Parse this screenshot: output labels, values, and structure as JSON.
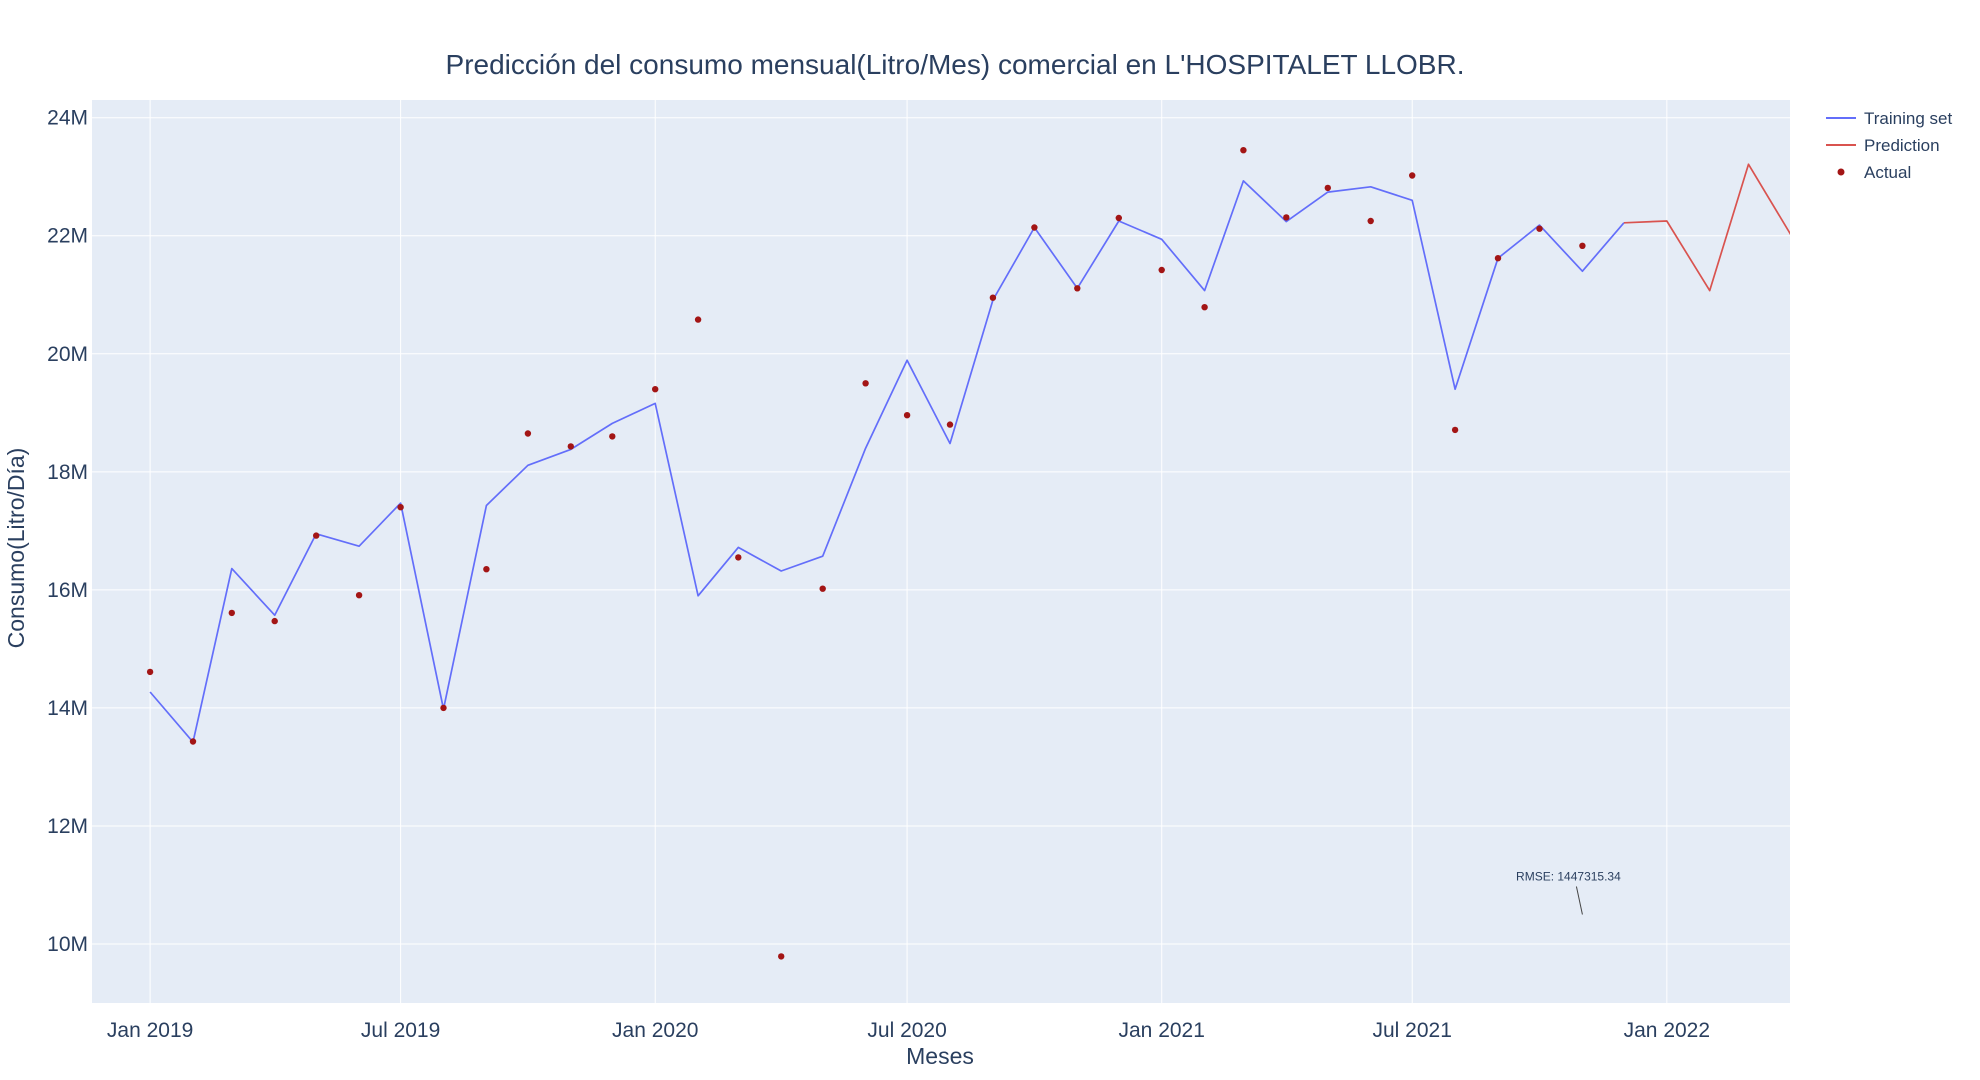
{
  "chart_data": {
    "type": "line",
    "title": "Predicción del consumo mensual(Litro/Mes) comercial en L'HOSPITALET LLOBR.",
    "xlabel": "Meses",
    "ylabel": "Consumo(Litro/Día)",
    "x_range": [
      "2018-11-20",
      "2022-03-31"
    ],
    "ylim": [
      9000000,
      24300000
    ],
    "grid": true,
    "legend_position": "top-right",
    "x_ticks": [
      {
        "date": "2019-01-01",
        "label": "Jan 2019"
      },
      {
        "date": "2019-07-01",
        "label": "Jul 2019"
      },
      {
        "date": "2020-01-01",
        "label": "Jan 2020"
      },
      {
        "date": "2020-07-01",
        "label": "Jul 2020"
      },
      {
        "date": "2021-01-01",
        "label": "Jan 2021"
      },
      {
        "date": "2021-07-01",
        "label": "Jul 2021"
      },
      {
        "date": "2022-01-01",
        "label": "Jan 2022"
      }
    ],
    "y_ticks": [
      {
        "value": 10000000,
        "label": "10M"
      },
      {
        "value": 12000000,
        "label": "12M"
      },
      {
        "value": 14000000,
        "label": "14M"
      },
      {
        "value": 16000000,
        "label": "16M"
      },
      {
        "value": 18000000,
        "label": "18M"
      },
      {
        "value": 20000000,
        "label": "20M"
      },
      {
        "value": 22000000,
        "label": "22M"
      },
      {
        "value": 24000000,
        "label": "24M"
      }
    ],
    "series": [
      {
        "name": "Training set",
        "kind": "line",
        "color": "#636efa",
        "x": [
          "2019-01-01",
          "2019-02-01",
          "2019-03-01",
          "2019-04-01",
          "2019-05-01",
          "2019-06-01",
          "2019-07-01",
          "2019-08-01",
          "2019-09-01",
          "2019-10-01",
          "2019-11-01",
          "2019-12-01",
          "2020-01-01",
          "2020-02-01",
          "2020-03-01",
          "2020-04-01",
          "2020-05-01",
          "2020-06-01",
          "2020-07-01",
          "2020-08-01",
          "2020-09-01",
          "2020-10-01",
          "2020-11-01",
          "2020-12-01",
          "2021-01-01",
          "2021-02-01",
          "2021-03-01",
          "2021-04-01",
          "2021-05-01",
          "2021-06-01",
          "2021-07-01",
          "2021-08-01",
          "2021-09-01",
          "2021-10-01",
          "2021-11-01",
          "2021-12-01"
        ],
        "y": [
          14270000,
          13420000,
          16360000,
          15570000,
          16950000,
          16740000,
          17470000,
          13980000,
          17430000,
          18110000,
          18380000,
          18820000,
          19160000,
          15900000,
          16720000,
          16320000,
          16570000,
          18400000,
          19890000,
          18480000,
          20910000,
          22140000,
          21110000,
          22250000,
          21940000,
          21070000,
          22930000,
          22240000,
          22740000,
          22830000,
          22600000,
          19400000,
          21620000,
          22180000,
          21400000,
          22220000
        ]
      },
      {
        "name": "Prediction",
        "kind": "line",
        "color": "#d9534f",
        "x": [
          "2021-12-01",
          "2022-01-01",
          "2022-02-01",
          "2022-03-01",
          "2022-04-01"
        ],
        "y": [
          22220000,
          22250000,
          21070000,
          23210000,
          22000000
        ]
      },
      {
        "name": "Actual",
        "kind": "markers",
        "color": "#a31515",
        "x": [
          "2019-01-01",
          "2019-02-01",
          "2019-03-01",
          "2019-04-01",
          "2019-05-01",
          "2019-06-01",
          "2019-07-01",
          "2019-08-01",
          "2019-09-01",
          "2019-10-01",
          "2019-11-01",
          "2019-12-01",
          "2020-01-01",
          "2020-02-01",
          "2020-03-01",
          "2020-04-01",
          "2020-05-01",
          "2020-06-01",
          "2020-07-01",
          "2020-08-01",
          "2020-09-01",
          "2020-10-01",
          "2020-11-01",
          "2020-12-01",
          "2021-01-01",
          "2021-02-01",
          "2021-03-01",
          "2021-04-01",
          "2021-05-01",
          "2021-06-01",
          "2021-07-01",
          "2021-08-01",
          "2021-09-01",
          "2021-10-01",
          "2021-11-01"
        ],
        "y": [
          14610000,
          13430000,
          15610000,
          15470000,
          16920000,
          15910000,
          17400000,
          14000000,
          16350000,
          18650000,
          18430000,
          18600000,
          19400000,
          20580000,
          16550000,
          9790000,
          16020000,
          19500000,
          18960000,
          18800000,
          20950000,
          22140000,
          21110000,
          22300000,
          21420000,
          20790000,
          23450000,
          22310000,
          22810000,
          22250000,
          23020000,
          18710000,
          21620000,
          22120000,
          21830000
        ]
      }
    ],
    "annotations": [
      {
        "text": "RMSE: 1447315.34",
        "x": "2021-11-01",
        "y": 10500000
      }
    ]
  }
}
